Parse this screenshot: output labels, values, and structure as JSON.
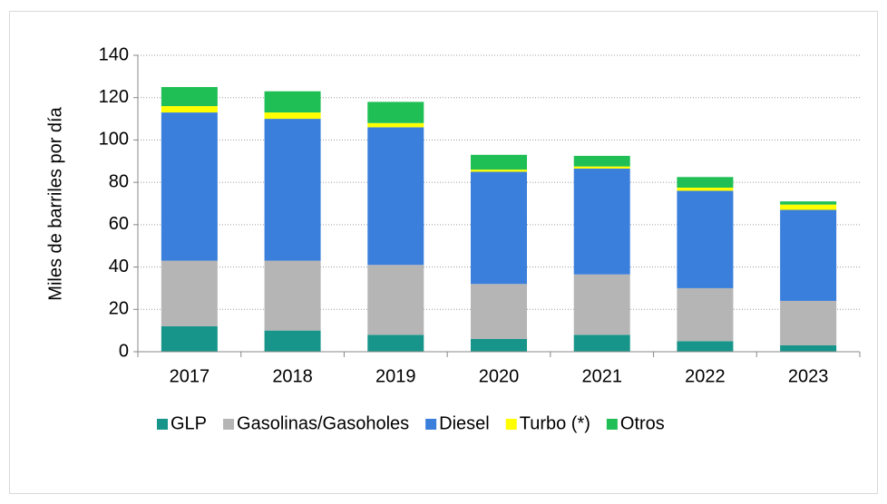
{
  "chart_data": {
    "type": "stacked_bar",
    "y_label": "Miles de barriles por día",
    "categories": [
      "2017",
      "2018",
      "2019",
      "2020",
      "2021",
      "2022",
      "2023"
    ],
    "series": [
      {
        "name": "GLP",
        "color": "#17958a",
        "values": [
          12,
          10,
          8,
          6,
          8,
          5,
          3
        ]
      },
      {
        "name": "Gasolinas/Gasoholes",
        "color": "#b5b5b5",
        "values": [
          31,
          33,
          33,
          26,
          28.5,
          25,
          21
        ]
      },
      {
        "name": "Diesel",
        "color": "#3b7fdc",
        "values": [
          70,
          67,
          65,
          53,
          50,
          46,
          43
        ]
      },
      {
        "name": "Turbo (*)",
        "color": "#ffff00",
        "values": [
          3,
          3,
          2,
          1,
          1,
          1.5,
          2.5
        ]
      },
      {
        "name": "Otros",
        "color": "#1fbf55",
        "values": [
          9,
          10,
          10,
          7,
          5,
          5,
          1.5
        ]
      }
    ],
    "ylim": [
      0,
      140
    ],
    "yticks": [
      0,
      20,
      40,
      60,
      80,
      100,
      120,
      140
    ],
    "grid": true,
    "legend": "bottom"
  }
}
